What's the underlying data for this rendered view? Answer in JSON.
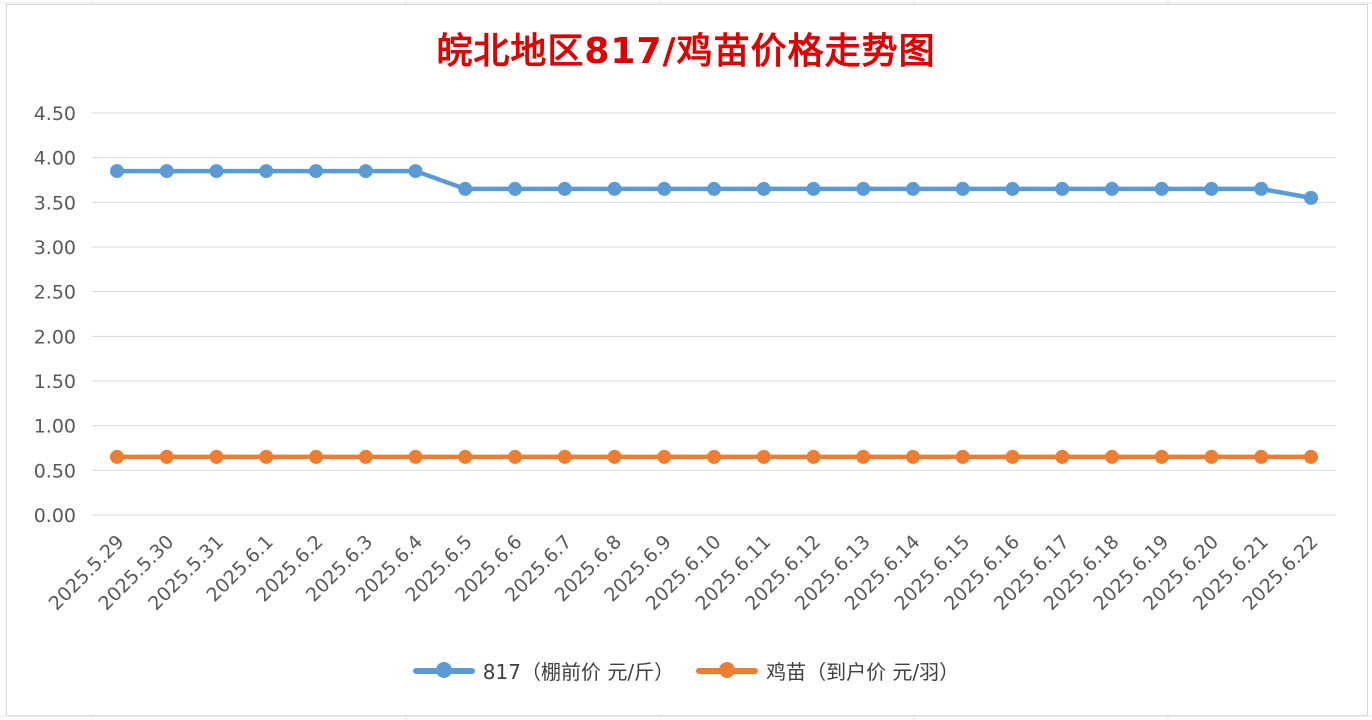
{
  "chart_data": {
    "type": "line",
    "title": "皖北地区817/鸡苗价格走势图",
    "categories": [
      "2025.5.29",
      "2025.5.30",
      "2025.5.31",
      "2025.6.1",
      "2025.6.2",
      "2025.6.3",
      "2025.6.4",
      "2025.6.5",
      "2025.6.6",
      "2025.6.7",
      "2025.6.8",
      "2025.6.9",
      "2025.6.10",
      "2025.6.11",
      "2025.6.12",
      "2025.6.13",
      "2025.6.14",
      "2025.6.15",
      "2025.6.16",
      "2025.6.17",
      "2025.6.18",
      "2025.6.19",
      "2025.6.20",
      "2025.6.21",
      "2025.6.22"
    ],
    "series": [
      {
        "name": "817（棚前价 元/斤）",
        "color": "#5b9bd5",
        "values": [
          3.85,
          3.85,
          3.85,
          3.85,
          3.85,
          3.85,
          3.85,
          3.65,
          3.65,
          3.65,
          3.65,
          3.65,
          3.65,
          3.65,
          3.65,
          3.65,
          3.65,
          3.65,
          3.65,
          3.65,
          3.65,
          3.65,
          3.65,
          3.65,
          3.55
        ]
      },
      {
        "name": "鸡苗（到户价 元/羽）",
        "color": "#ed7d31",
        "values": [
          0.65,
          0.65,
          0.65,
          0.65,
          0.65,
          0.65,
          0.65,
          0.65,
          0.65,
          0.65,
          0.65,
          0.65,
          0.65,
          0.65,
          0.65,
          0.65,
          0.65,
          0.65,
          0.65,
          0.65,
          0.65,
          0.65,
          0.65,
          0.65,
          0.65
        ]
      }
    ],
    "yticks": [
      "0.00",
      "0.50",
      "1.00",
      "1.50",
      "2.00",
      "2.50",
      "3.00",
      "3.50",
      "4.00",
      "4.50"
    ],
    "ylim": [
      0,
      4.5
    ],
    "grid": true,
    "legend_position": "bottom"
  }
}
